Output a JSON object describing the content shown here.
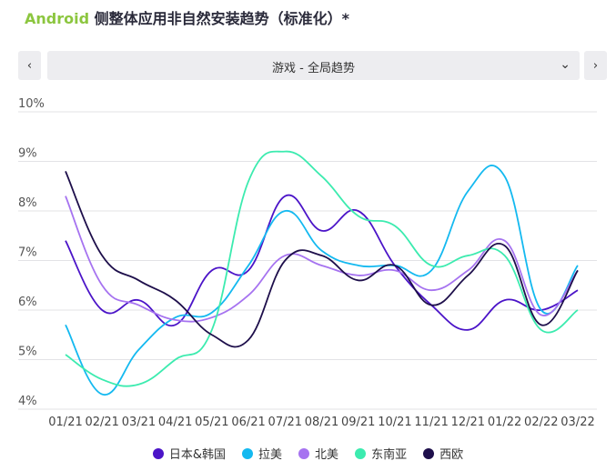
{
  "header": {
    "brand": "Android",
    "title_rest": " 侧整体应用非自然安装趋势（标准化）*"
  },
  "selector": {
    "value": "游戏 - 全局趋势",
    "prev_label": "‹",
    "next_label": "›",
    "chevron": "⌄"
  },
  "chart_data": {
    "type": "line",
    "title": "Android 侧整体应用非自然安装趋势（标准化）*",
    "categories": [
      "01/21",
      "02/21",
      "03/21",
      "04/21",
      "05/21",
      "06/21",
      "07/21",
      "08/21",
      "09/21",
      "10/21",
      "11/21",
      "12/21",
      "01/22",
      "02/22",
      "03/22"
    ],
    "y_tick_labels": [
      "4%",
      "5%",
      "6%",
      "7%",
      "8%",
      "9%",
      "10%"
    ],
    "ylim": [
      4,
      10
    ],
    "grid": true,
    "legend_position": "bottom",
    "series": [
      {
        "name": "日本&韩国",
        "color": "#4b14c8",
        "values": [
          7.4,
          6.0,
          6.2,
          5.7,
          6.8,
          6.8,
          8.3,
          7.6,
          8.0,
          6.9,
          6.1,
          5.6,
          6.2,
          6.0,
          6.4
        ]
      },
      {
        "name": "拉美",
        "color": "#14b9f0",
        "values": [
          5.7,
          4.3,
          5.2,
          5.85,
          5.95,
          6.9,
          8.0,
          7.2,
          6.9,
          6.9,
          6.8,
          8.4,
          8.7,
          6.0,
          6.9
        ]
      },
      {
        "name": "北美",
        "color": "#a673f0",
        "values": [
          8.3,
          6.5,
          6.1,
          5.8,
          5.85,
          6.3,
          7.1,
          6.9,
          6.7,
          6.8,
          6.4,
          6.8,
          7.4,
          5.9,
          6.8
        ]
      },
      {
        "name": "东南亚",
        "color": "#3cebaf",
        "values": [
          5.1,
          4.6,
          4.5,
          5.0,
          5.6,
          8.6,
          9.2,
          8.7,
          7.9,
          7.7,
          6.9,
          7.1,
          7.1,
          5.6,
          6.0
        ]
      },
      {
        "name": "西欧",
        "color": "#1e0f4b",
        "values": [
          8.8,
          7.1,
          6.6,
          6.2,
          5.5,
          5.4,
          7.0,
          7.1,
          6.6,
          6.9,
          6.1,
          6.7,
          7.3,
          5.7,
          6.8
        ]
      }
    ]
  }
}
